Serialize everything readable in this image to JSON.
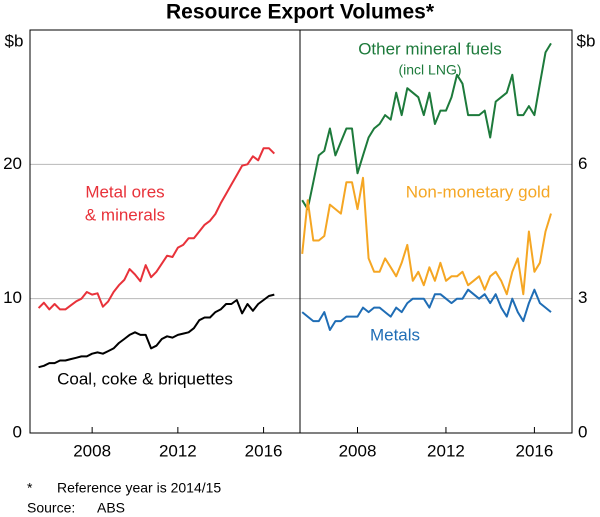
{
  "title": "Resource Export Volumes*",
  "note": {
    "mark": "*",
    "text": "Reference year is 2014/15"
  },
  "source": {
    "label": "Source:",
    "text": "ABS"
  },
  "chart_data": [
    {
      "type": "line",
      "y_label": "$b",
      "grid": true,
      "xlim": [
        2005.1,
        2017.7
      ],
      "xticks": [
        2008,
        2012,
        2016
      ],
      "ylim": [
        0,
        30
      ],
      "yticks": [
        0,
        10,
        20
      ],
      "x": [
        2005.5,
        2005.75,
        2006,
        2006.25,
        2006.5,
        2006.75,
        2007,
        2007.25,
        2007.5,
        2007.75,
        2008,
        2008.25,
        2008.5,
        2008.75,
        2009,
        2009.25,
        2009.5,
        2009.75,
        2010,
        2010.25,
        2010.5,
        2010.75,
        2011,
        2011.25,
        2011.5,
        2011.75,
        2012,
        2012.25,
        2012.5,
        2012.75,
        2013,
        2013.25,
        2013.5,
        2013.75,
        2014,
        2014.25,
        2014.5,
        2014.75,
        2015,
        2015.25,
        2015.5,
        2015.75,
        2016,
        2016.25,
        2016.5
      ],
      "series": [
        {
          "name": [
            "Metal ores",
            "& minerals"
          ],
          "color": "#e8323a",
          "values": [
            9.3,
            9.7,
            9.2,
            9.6,
            9.2,
            9.2,
            9.5,
            9.8,
            10.0,
            10.5,
            10.3,
            10.4,
            9.4,
            9.8,
            10.5,
            11.0,
            11.4,
            12.2,
            11.8,
            11.3,
            12.5,
            11.6,
            12.0,
            12.6,
            13.2,
            13.1,
            13.8,
            14.0,
            14.5,
            14.5,
            15.0,
            15.5,
            15.8,
            16.3,
            17.1,
            17.8,
            18.5,
            19.2,
            19.9,
            20.0,
            20.6,
            20.3,
            21.2,
            21.2,
            20.8
          ]
        },
        {
          "name": "Coal, coke & briquettes",
          "color": "#000000",
          "values": [
            4.9,
            5.0,
            5.2,
            5.2,
            5.4,
            5.4,
            5.5,
            5.6,
            5.7,
            5.7,
            5.9,
            6.0,
            5.9,
            6.1,
            6.3,
            6.7,
            7.0,
            7.3,
            7.5,
            7.3,
            7.3,
            6.3,
            6.5,
            7.0,
            7.2,
            7.1,
            7.3,
            7.4,
            7.5,
            7.8,
            8.4,
            8.6,
            8.6,
            9.0,
            9.2,
            9.6,
            9.6,
            9.9,
            8.9,
            9.6,
            9.1,
            9.6,
            9.9,
            10.2,
            10.3
          ]
        }
      ]
    },
    {
      "type": "line",
      "y_label": "$b",
      "grid": true,
      "xlim": [
        2005.4,
        2017.7
      ],
      "xticks": [
        2008,
        2012,
        2016
      ],
      "ylim": [
        0,
        9
      ],
      "yticks": [
        0,
        3,
        6
      ],
      "x": [
        2005.5,
        2005.75,
        2006,
        2006.25,
        2006.5,
        2006.75,
        2007,
        2007.25,
        2007.5,
        2007.75,
        2008,
        2008.25,
        2008.5,
        2008.75,
        2009,
        2009.25,
        2009.5,
        2009.75,
        2010,
        2010.25,
        2010.5,
        2010.75,
        2011,
        2011.25,
        2011.5,
        2011.75,
        2012,
        2012.25,
        2012.5,
        2012.75,
        2013,
        2013.25,
        2013.5,
        2013.75,
        2014,
        2014.25,
        2014.5,
        2014.75,
        2015,
        2015.25,
        2015.5,
        2015.75,
        2016,
        2016.25,
        2016.5,
        2016.75
      ],
      "series": [
        {
          "name": [
            "Other mineral fuels",
            "(incl LNG)"
          ],
          "color": "#1d7a3b",
          "values": [
            5.2,
            5.0,
            5.6,
            6.2,
            6.3,
            6.8,
            6.2,
            6.5,
            6.8,
            6.8,
            5.8,
            6.2,
            6.6,
            6.8,
            6.9,
            7.1,
            7.0,
            7.6,
            7.1,
            7.7,
            7.6,
            7.5,
            7.1,
            7.6,
            6.9,
            7.2,
            7.2,
            7.5,
            8.0,
            7.8,
            7.1,
            7.1,
            7.1,
            7.2,
            6.6,
            7.4,
            7.5,
            7.6,
            8.0,
            7.1,
            7.1,
            7.3,
            7.1,
            7.8,
            8.5,
            8.7
          ]
        },
        {
          "name": "Non-monetary gold",
          "color": "#f5a623",
          "values": [
            4.0,
            5.2,
            4.3,
            4.3,
            4.4,
            5.1,
            5.0,
            4.9,
            5.6,
            5.6,
            5.0,
            5.7,
            3.9,
            3.6,
            3.6,
            3.9,
            3.7,
            3.5,
            3.8,
            4.2,
            3.4,
            3.6,
            3.3,
            3.7,
            3.4,
            3.8,
            3.4,
            3.5,
            3.5,
            3.6,
            3.3,
            3.4,
            3.5,
            3.2,
            3.5,
            3.6,
            3.4,
            3.1,
            3.6,
            3.9,
            3.1,
            4.5,
            3.6,
            3.8,
            4.5,
            4.9
          ]
        },
        {
          "name": "Metals",
          "color": "#1f6db5",
          "values": [
            2.7,
            2.6,
            2.5,
            2.5,
            2.7,
            2.3,
            2.5,
            2.5,
            2.6,
            2.6,
            2.6,
            2.8,
            2.7,
            2.8,
            2.8,
            2.7,
            2.6,
            2.8,
            2.7,
            2.9,
            3.0,
            3.0,
            3.0,
            2.8,
            3.1,
            3.1,
            3.0,
            2.9,
            3.0,
            3.0,
            3.2,
            3.1,
            3.0,
            3.1,
            2.9,
            3.1,
            2.8,
            2.6,
            3.0,
            2.7,
            2.5,
            2.9,
            3.2,
            2.9,
            2.8,
            2.7
          ]
        }
      ]
    }
  ]
}
